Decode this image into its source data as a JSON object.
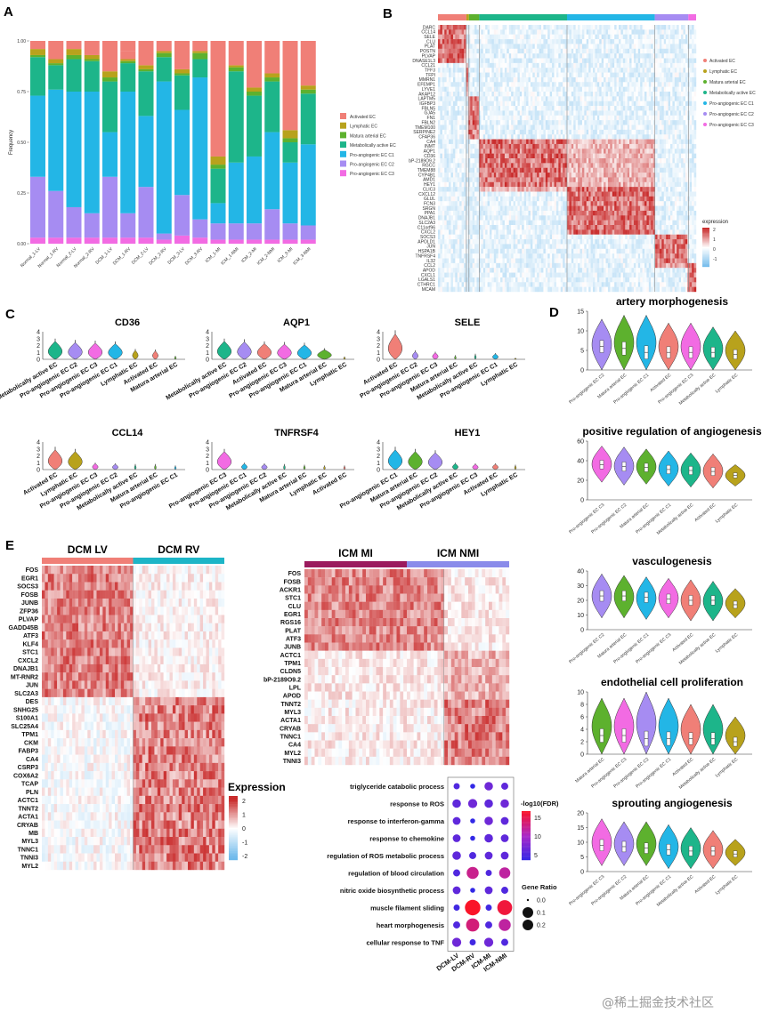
{
  "panels": {
    "A": "A",
    "B": "B",
    "C": "C",
    "D": "D",
    "E": "E"
  },
  "colors": {
    "Activated EC": "#F07F77",
    "Lymphatic EC": "#B8A21C",
    "Matura arterial EC": "#5DB12E",
    "Metabolically active EC": "#1DB58A",
    "Pro-angiogenic EC C1": "#23B6E6",
    "Pro-angiogenic EC C2": "#A68CF2",
    "Pro-angiogenic EC C3": "#F26BE3"
  },
  "chart_data": [
    {
      "id": "A",
      "type": "bar",
      "stacked": true,
      "ylabel": "Frequency",
      "ylim": [
        0,
        1
      ],
      "yticks": [
        "0.00",
        "0.25",
        "0.50",
        "0.75",
        "1.00"
      ],
      "categories": [
        "Normal_1-LV",
        "Normal_1-RV",
        "Normal_2-LV",
        "Normal_2-RV",
        "DCM_1-LV",
        "DCM_1-RV",
        "DCM_2-LV",
        "DCM_2-RV",
        "DCM_3-LV",
        "DCM_3-RV",
        "ICM_1-MI",
        "ICM_1-NMI",
        "ICM_2-MI",
        "ICM_2-NMI",
        "ICM_3-MI",
        "ICM_3-NMI"
      ],
      "series": [
        {
          "name": "Pro-angiogenic EC C3",
          "values": [
            0.03,
            0.03,
            0.03,
            0.03,
            0.03,
            0.03,
            0.03,
            0.02,
            0.04,
            0.03,
            0.02,
            0.02,
            0.02,
            0.02,
            0.02,
            0.02
          ]
        },
        {
          "name": "Pro-angiogenic EC C2",
          "values": [
            0.3,
            0.23,
            0.15,
            0.12,
            0.3,
            0.12,
            0.25,
            0.03,
            0.2,
            0.09,
            0.08,
            0.08,
            0.08,
            0.15,
            0.08,
            0.07
          ]
        },
        {
          "name": "Pro-angiogenic EC C1",
          "values": [
            0.4,
            0.5,
            0.57,
            0.6,
            0.22,
            0.6,
            0.35,
            0.75,
            0.42,
            0.7,
            0.1,
            0.3,
            0.33,
            0.38,
            0.3,
            0.4
          ]
        },
        {
          "name": "Metabolically active EC",
          "values": [
            0.19,
            0.12,
            0.16,
            0.15,
            0.25,
            0.14,
            0.22,
            0.12,
            0.17,
            0.09,
            0.17,
            0.45,
            0.3,
            0.25,
            0.1,
            0.25
          ]
        },
        {
          "name": "Matura arterial EC",
          "values": [
            0.01,
            0.01,
            0.02,
            0.01,
            0.02,
            0.01,
            0.01,
            0.02,
            0.01,
            0.03,
            0.02,
            0.02,
            0.02,
            0.02,
            0.02,
            0.02
          ]
        },
        {
          "name": "Lymphatic EC",
          "values": [
            0.03,
            0.02,
            0.03,
            0.02,
            0.03,
            0.01,
            0.02,
            0.01,
            0.02,
            0.01,
            0.04,
            0.01,
            0.02,
            0.02,
            0.04,
            0.02
          ]
        },
        {
          "name": "Activated EC",
          "values": [
            0.04,
            0.09,
            0.04,
            0.07,
            0.15,
            0.04,
            0.12,
            0.05,
            0.14,
            0.05,
            0.57,
            0.12,
            0.23,
            0.16,
            0.44,
            0.22
          ]
        }
      ],
      "legend": [
        "Activated EC",
        "Lymphatic EC",
        "Matura arterial EC",
        "Metabolically active EC",
        "Pro-angiogenic EC C1",
        "Pro-angiogenic EC C2",
        "Pro-angiogenic EC C3"
      ]
    },
    {
      "id": "B",
      "type": "heatmap",
      "clusters": [
        "Activated EC",
        "Lymphatic EC",
        "Matura arterial EC",
        "Metabolically active EC",
        "Pro-angiogenic EC C1",
        "Pro-angiogenic EC C2",
        "Pro-angiogenic EC C3"
      ],
      "cluster_fraction": [
        0.11,
        0.01,
        0.04,
        0.34,
        0.34,
        0.13,
        0.03
      ],
      "genes": [
        "DARC",
        "CCL14",
        "SELE",
        "CLU",
        "PLAT",
        "POSTN",
        "PLVAP",
        "DNASE1L3",
        "CCL21",
        "TFF3",
        "TFPI",
        "MMRN1",
        "EFEMP1",
        "LYVE1",
        "AKAP12",
        "LAPTM5",
        "IGFBP3",
        "FBLN5",
        "GJA5",
        "FN1",
        "FBLN2",
        "TMEM100",
        "SERPINE2",
        "CFAP36",
        "CA4",
        "INMT",
        "AQP1",
        "CD36",
        "bP-2189O9.2",
        "RGCC",
        "TMEM88",
        "CYP4B1",
        "AMD1",
        "HEY1",
        "CLIC3",
        "CXCL12",
        "GLUL",
        "FCN3",
        "SRGN",
        "PPA1",
        "DNAJB1",
        "SLC2A3",
        "C11orf96",
        "CXCL2",
        "SOCS3",
        "APOLD1",
        "JUN",
        "HSPA1B",
        "TNFRSF4",
        "IL32",
        "CCL2",
        "APOD",
        "CXCL1",
        "LGALS1",
        "CTHRC1",
        "MCAM"
      ],
      "legend_title": "expression",
      "legend_ticks": [
        "2",
        "1",
        "0",
        "-1"
      ]
    },
    {
      "id": "C",
      "type": "violin",
      "ylim": [
        0,
        4
      ],
      "yticks": [
        "0",
        "1",
        "2",
        "3",
        "4"
      ],
      "plots": [
        {
          "title": "CD36",
          "categories": [
            "Metabolically active EC",
            "Pro-angiogenic EC C2",
            "Pro-angiogenic EC C3",
            "Pro-angiogenic EC C1",
            "Lymphatic EC",
            "Activated EC",
            "Matura arterial EC"
          ],
          "heights": [
            3.0,
            2.8,
            2.7,
            2.6,
            1.5,
            1.4,
            0.5
          ]
        },
        {
          "title": "AQP1",
          "categories": [
            "Metabolically active EC",
            "Pro-angiogenic EC C2",
            "Activated EC",
            "Pro-angiogenic EC C3",
            "Pro-angiogenic EC C1",
            "Matura arterial EC",
            "Lymphatic EC"
          ],
          "heights": [
            3.0,
            2.9,
            2.6,
            2.5,
            2.4,
            1.6,
            0.4
          ]
        },
        {
          "title": "SELE",
          "categories": [
            "Activated EC",
            "Pro-angiogenic EC C2",
            "Pro-angiogenic EC C3",
            "Matura arterial EC",
            "Metabolically active EC",
            "Pro-angiogenic EC C1",
            "Lymphatic EC"
          ],
          "heights": [
            4.2,
            1.3,
            1.1,
            0.6,
            0.8,
            0.9,
            0.2
          ]
        },
        {
          "title": "CCL14",
          "categories": [
            "Activated EC",
            "Lymphatic EC",
            "Pro-angiogenic EC C3",
            "Pro-angiogenic EC C2",
            "Metabolically active EC",
            "Matura arterial EC",
            "Pro-angiogenic EC C1"
          ],
          "heights": [
            3.3,
            3.0,
            1.0,
            0.9,
            0.8,
            0.8,
            0.6
          ]
        },
        {
          "title": "TNFRSF4",
          "categories": [
            "Pro-angiogenic EC C3",
            "Pro-angiogenic EC C1",
            "Pro-angiogenic EC C2",
            "Metabolically active EC",
            "Matura arterial EC",
            "Lymphatic EC",
            "Activated EC"
          ],
          "heights": [
            3.0,
            1.0,
            0.9,
            0.8,
            0.7,
            0.6,
            0.6
          ]
        },
        {
          "title": "HEY1",
          "categories": [
            "Pro-angiogenic EC C1",
            "Matura arterial EC",
            "Pro-angiogenic EC C2",
            "Metabolically active EC",
            "Pro-angiogenic EC C3",
            "Activated EC",
            "Lymphatic EC"
          ],
          "heights": [
            3.3,
            3.0,
            2.8,
            1.0,
            0.9,
            0.9,
            0.7
          ]
        }
      ]
    },
    {
      "id": "D",
      "type": "violin",
      "plots": [
        {
          "title": "artery morphogenesis",
          "ylim": [
            0,
            15
          ],
          "yticks": [
            "0",
            "5",
            "10",
            "15"
          ],
          "categories": [
            "Pro-angiogenic EC C2",
            "Matura arterial EC",
            "Pro-angiogenic EC C1",
            "Activated EC",
            "Pro-angiogenic EC C3",
            "Metabolically active EC",
            "Lymphatic EC"
          ],
          "medians": [
            6,
            5.5,
            4.5,
            4.5,
            4.5,
            4.5,
            4
          ],
          "ranges": [
            [
              0,
              13
            ],
            [
              0,
              14
            ],
            [
              0,
              14
            ],
            [
              0,
              12
            ],
            [
              0,
              12
            ],
            [
              0,
              11
            ],
            [
              0,
              10
            ]
          ]
        },
        {
          "title": "positive regulation of angiogenesis",
          "ylim": [
            0,
            60
          ],
          "yticks": [
            "0",
            "20",
            "40",
            "60"
          ],
          "categories": [
            "Pro-angiogenic EC C3",
            "Pro-angiogenic EC C2",
            "Matura arterial EC",
            "Pro-angiogenic EC C1",
            "Metabolically active EC",
            "Activated EC",
            "Lymphatic EC"
          ],
          "medians": [
            36,
            34,
            33,
            31,
            30,
            29,
            25
          ],
          "ranges": [
            [
              18,
              55
            ],
            [
              15,
              54
            ],
            [
              16,
              52
            ],
            [
              14,
              50
            ],
            [
              13,
              48
            ],
            [
              12,
              47
            ],
            [
              14,
              36
            ]
          ]
        },
        {
          "title": "vasculogenesis",
          "ylim": [
            0,
            40
          ],
          "yticks": [
            "0",
            "10",
            "20",
            "30",
            "40"
          ],
          "categories": [
            "Pro-angiogenic EC C2",
            "Matura arterial EC",
            "Pro-angiogenic EC C1",
            "Pro-angiogenic EC C3",
            "Activated EC",
            "Metabolically active EC",
            "Lymphatic EC"
          ],
          "medians": [
            23,
            23,
            22,
            21,
            20,
            20,
            17
          ],
          "ranges": [
            [
              8,
              38
            ],
            [
              8,
              37
            ],
            [
              7,
              36
            ],
            [
              8,
              35
            ],
            [
              6,
              34
            ],
            [
              6,
              33
            ],
            [
              8,
              28
            ]
          ]
        },
        {
          "title": "endothelial cell proliferation",
          "ylim": [
            0,
            10
          ],
          "yticks": [
            "0",
            "2",
            "4",
            "6",
            "8",
            "10"
          ],
          "categories": [
            "Matura arterial EC",
            "Pro-angiogenic EC C3",
            "Pro-angiogenic EC C2",
            "Pro-angiogenic EC C1",
            "Activated EC",
            "Metabolically active EC",
            "Lymphatic EC"
          ],
          "medians": [
            3,
            3,
            2.5,
            2.5,
            2.5,
            2.5,
            2
          ],
          "ranges": [
            [
              0,
              9
            ],
            [
              0,
              9
            ],
            [
              0,
              10
            ],
            [
              0,
              9
            ],
            [
              0,
              8
            ],
            [
              0,
              8
            ],
            [
              0,
              6
            ]
          ]
        },
        {
          "title": "sprouting angiogenesis",
          "ylim": [
            0,
            20
          ],
          "yticks": [
            "0",
            "5",
            "10",
            "15",
            "20"
          ],
          "categories": [
            "Pro-angiogenic EC C3",
            "Pro-angiogenic EC C2",
            "Matura arterial EC",
            "Pro-angiogenic EC C1",
            "Metabolically active EC",
            "Activated EC",
            "Lymphatic EC"
          ],
          "medians": [
            9,
            8.5,
            8,
            7.5,
            7,
            7,
            6
          ],
          "ranges": [
            [
              2,
              18
            ],
            [
              2,
              17
            ],
            [
              2,
              17
            ],
            [
              1,
              16
            ],
            [
              1,
              15
            ],
            [
              1,
              14
            ],
            [
              2,
              11
            ]
          ]
        }
      ]
    },
    {
      "id": "E1",
      "type": "heatmap",
      "groups": [
        "DCM LV",
        "DCM RV"
      ],
      "group_colors": [
        "#F07F77",
        "#1DB5C7"
      ],
      "genes": [
        "FOS",
        "EGR1",
        "SOCS3",
        "FOSB",
        "JUNB",
        "ZFP36",
        "PLVAP",
        "GADD45B",
        "ATF3",
        "KLF4",
        "STC1",
        "CXCL2",
        "DNAJB1",
        "MT-RNR2",
        "JUN",
        "SLC2A3",
        "DES",
        "SNHG25",
        "S100A1",
        "SLC25A4",
        "TPM1",
        "CKM",
        "FABP3",
        "CA4",
        "CSRP3",
        "COX6A2",
        "TCAP",
        "PLN",
        "ACTC1",
        "TNNT2",
        "ACTA1",
        "CRYAB",
        "MB",
        "MYL3",
        "TNNC1",
        "TNNI3",
        "MYL2"
      ],
      "legend_title": "Expression",
      "legend_ticks": [
        "2",
        "1",
        "0",
        "-1",
        "-2"
      ]
    },
    {
      "id": "E2",
      "type": "heatmap",
      "groups": [
        "ICM MI",
        "ICM NMI"
      ],
      "group_colors": [
        "#9B1B5E",
        "#8A8BEA"
      ],
      "genes": [
        "FOS",
        "FOSB",
        "ACKR1",
        "STC1",
        "CLU",
        "EGR1",
        "RGS16",
        "PLAT",
        "ATF3",
        "JUNB",
        "ACTC1",
        "TPM1",
        "CLDN5",
        "bP-2189O9.2",
        "LPL",
        "APOD",
        "TNNT2",
        "MYL3",
        "ACTA1",
        "CRYAB",
        "TNNC1",
        "CA4",
        "MYL2",
        "TNNI3"
      ]
    },
    {
      "id": "E3",
      "type": "scatter",
      "x_categories": [
        "DCM-LV",
        "DCM-RV",
        "ICM-MI",
        "ICM-NMI"
      ],
      "terms": [
        "triglyceride catabolic process",
        "response to ROS",
        "response to interferon-gamma",
        "response to chemokine",
        "regulation of ROS metabolic process",
        "regulation of blood circulation",
        "nitric oxide biosynthetic process",
        "muscle filament sliding",
        "heart morphogenesis",
        "cellular response to TNF"
      ],
      "gene_ratio": [
        [
          0.02,
          0.01,
          0.05,
          0.03
        ],
        [
          0.05,
          0.06,
          0.05,
          0.05
        ],
        [
          0.04,
          0.01,
          0.05,
          0.04
        ],
        [
          0.04,
          0.01,
          0.05,
          0.04
        ],
        [
          0.05,
          0.03,
          0.04,
          0.04
        ],
        [
          0.03,
          0.12,
          0.02,
          0.1
        ],
        [
          0.04,
          0.01,
          0.04,
          0.03
        ],
        [
          0.02,
          0.22,
          0.02,
          0.2
        ],
        [
          0.03,
          0.15,
          0.03,
          0.12
        ],
        [
          0.06,
          0.02,
          0.06,
          0.03
        ]
      ],
      "neg_log10_fdr": [
        [
          3,
          1,
          5,
          4
        ],
        [
          4,
          5,
          4,
          5
        ],
        [
          4,
          1,
          5,
          4
        ],
        [
          4,
          1,
          4,
          4
        ],
        [
          4,
          3,
          4,
          4
        ],
        [
          3,
          12,
          3,
          11
        ],
        [
          4,
          1,
          4,
          3
        ],
        [
          2,
          17,
          2,
          16
        ],
        [
          3,
          13,
          3,
          11
        ],
        [
          5,
          2,
          5,
          3
        ]
      ],
      "color_legend_title": "-log10(FDR)",
      "color_ticks": [
        "15",
        "10",
        "5"
      ],
      "size_legend_title": "Gene Ratio",
      "size_ticks": [
        "0.0",
        "0.1",
        "0.2"
      ]
    }
  ],
  "watermark": "@稀土掘金技术社区"
}
